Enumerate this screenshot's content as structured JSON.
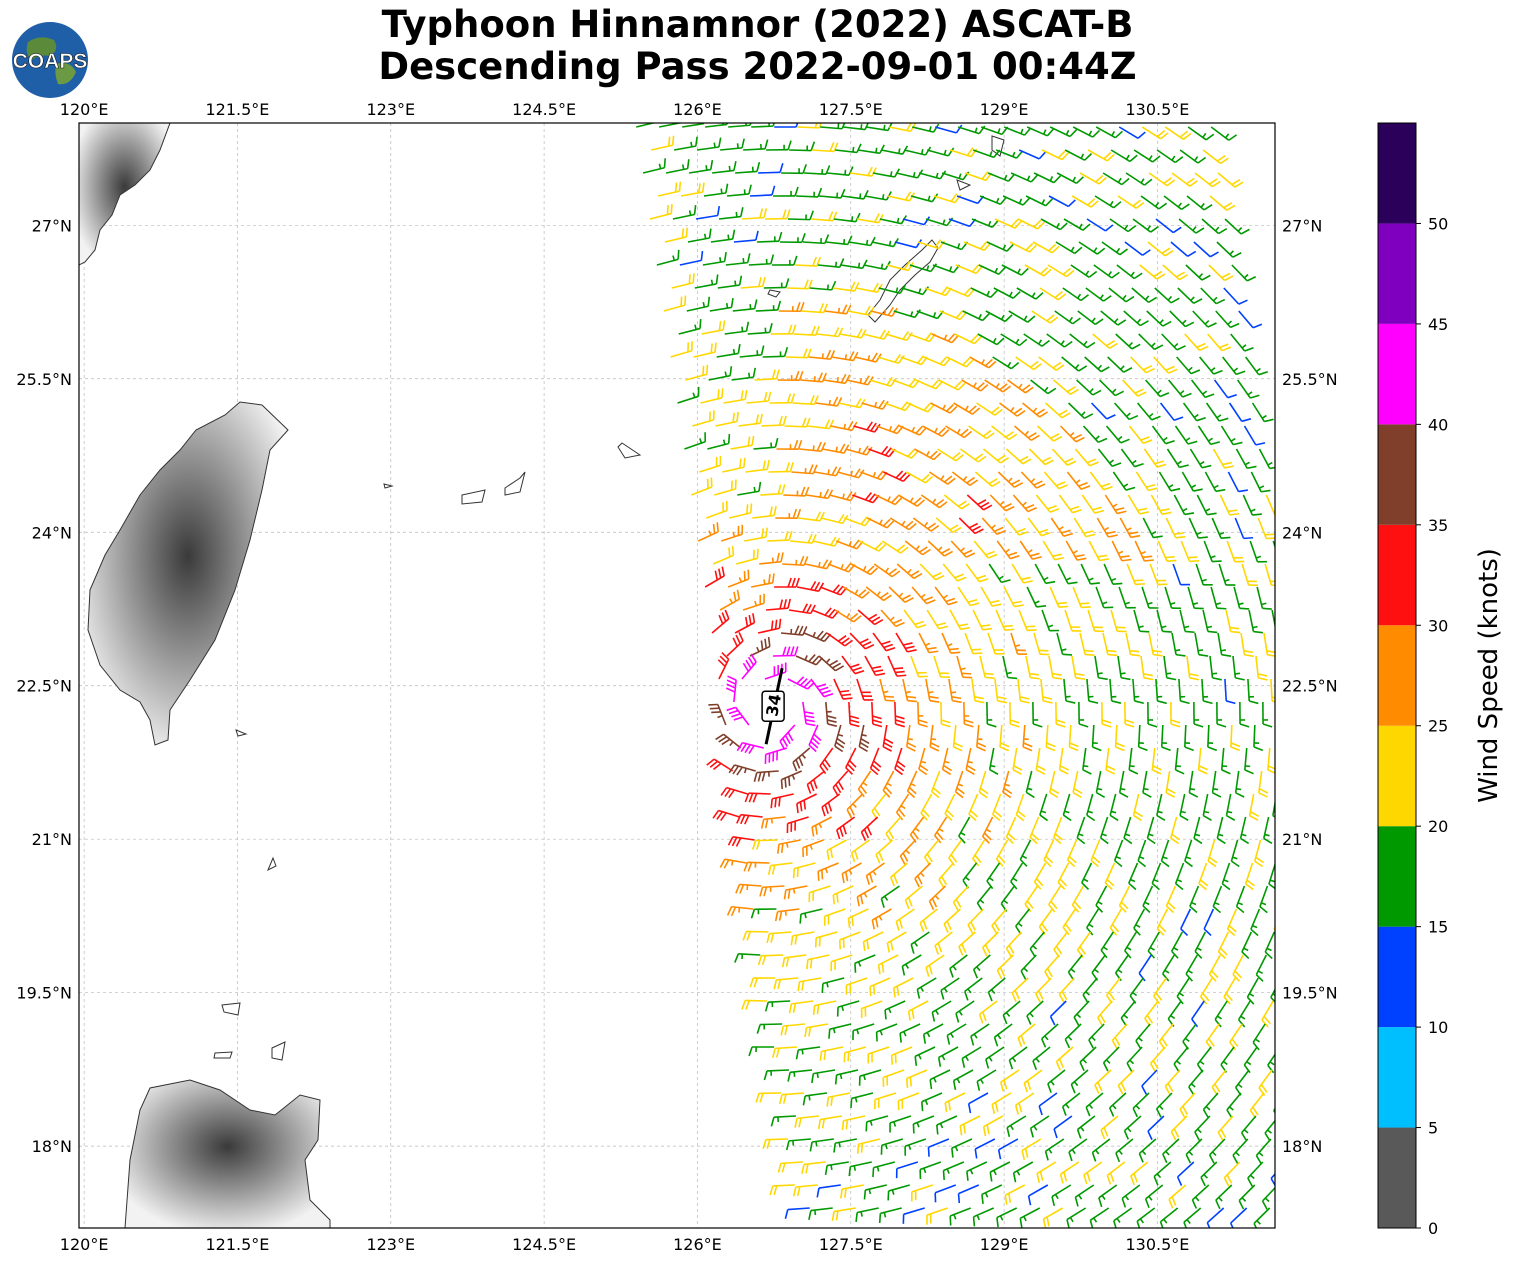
{
  "title": {
    "line1": "Typhoon Hinnamnor (2022) ASCAT-B",
    "line2": "Descending Pass 2022-09-01 00:44Z"
  },
  "logo": {
    "text": "COAPS",
    "icon": "globe-logo-icon"
  },
  "chart_data": {
    "type": "wind-barb-map",
    "map": {
      "lon_range": [
        119.95,
        131.65
      ],
      "lat_range": [
        17.2,
        28.0
      ],
      "grid": true,
      "lon_ticks": [
        {
          "value": 120.0,
          "label": "120°E"
        },
        {
          "value": 121.5,
          "label": "121.5°E"
        },
        {
          "value": 123.0,
          "label": "123°E"
        },
        {
          "value": 124.5,
          "label": "124.5°E"
        },
        {
          "value": 126.0,
          "label": "126°E"
        },
        {
          "value": 127.5,
          "label": "127.5°E"
        },
        {
          "value": 129.0,
          "label": "129°E"
        },
        {
          "value": 130.5,
          "label": "130.5°E"
        }
      ],
      "lat_ticks": [
        {
          "value": 27.0,
          "label": "27°N"
        },
        {
          "value": 25.5,
          "label": "25.5°N"
        },
        {
          "value": 24.0,
          "label": "24°N"
        },
        {
          "value": 22.5,
          "label": "22.5°N"
        },
        {
          "value": 21.0,
          "label": "21°N"
        },
        {
          "value": 19.5,
          "label": "19.5°N"
        },
        {
          "value": 18.0,
          "label": "18°N"
        }
      ]
    },
    "storm_center": {
      "lon": 126.75,
      "lat": 22.3,
      "label": "34"
    },
    "swath": {
      "lon_offset_min": -0.5,
      "lon_offset_max": 5.2,
      "lat_min": 17.2,
      "lat_max": 28.0
    },
    "colorbar": {
      "label": "Wind Speed (knots)",
      "bins": [
        {
          "min": 0,
          "max": 5,
          "color": "#595959"
        },
        {
          "min": 5,
          "max": 10,
          "color": "#00bfff"
        },
        {
          "min": 10,
          "max": 15,
          "color": "#0040ff"
        },
        {
          "min": 15,
          "max": 20,
          "color": "#009900"
        },
        {
          "min": 20,
          "max": 25,
          "color": "#ffd700"
        },
        {
          "min": 25,
          "max": 30,
          "color": "#ff8c00"
        },
        {
          "min": 30,
          "max": 35,
          "color": "#ff1010"
        },
        {
          "min": 35,
          "max": 40,
          "color": "#7f3f2a"
        },
        {
          "min": 40,
          "max": 45,
          "color": "#ff00ff"
        },
        {
          "min": 45,
          "max": 50,
          "color": "#8000c0"
        },
        {
          "min": 50,
          "max": 55,
          "color": "#2a005a"
        }
      ],
      "tick_labels": [
        "0",
        "5",
        "10",
        "15",
        "20",
        "25",
        "30",
        "35",
        "40",
        "45",
        "50"
      ]
    }
  }
}
